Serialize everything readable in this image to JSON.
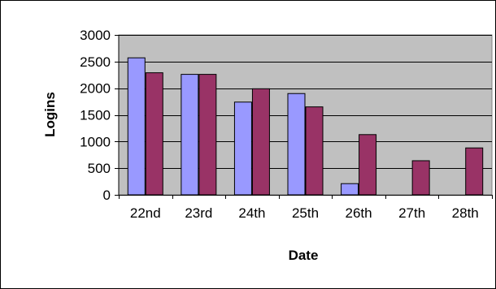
{
  "chart_data": {
    "type": "bar",
    "title": "",
    "xlabel": "Date",
    "ylabel": "Logins",
    "categories": [
      "22nd",
      "23rd",
      "24th",
      "25th",
      "26th",
      "27th",
      "28th"
    ],
    "series": [
      {
        "color": "#9999ff",
        "values": [
          2570,
          2260,
          1740,
          1900,
          210,
          null,
          null
        ]
      },
      {
        "color": "#993366",
        "values": [
          2290,
          2260,
          1990,
          1650,
          1130,
          640,
          880
        ]
      }
    ],
    "ylim": [
      0,
      3000
    ],
    "yticks": [
      0,
      500,
      1000,
      1500,
      2000,
      2500,
      3000
    ],
    "grid": true,
    "legend": "none",
    "plot_background": "#c0c0c0"
  }
}
